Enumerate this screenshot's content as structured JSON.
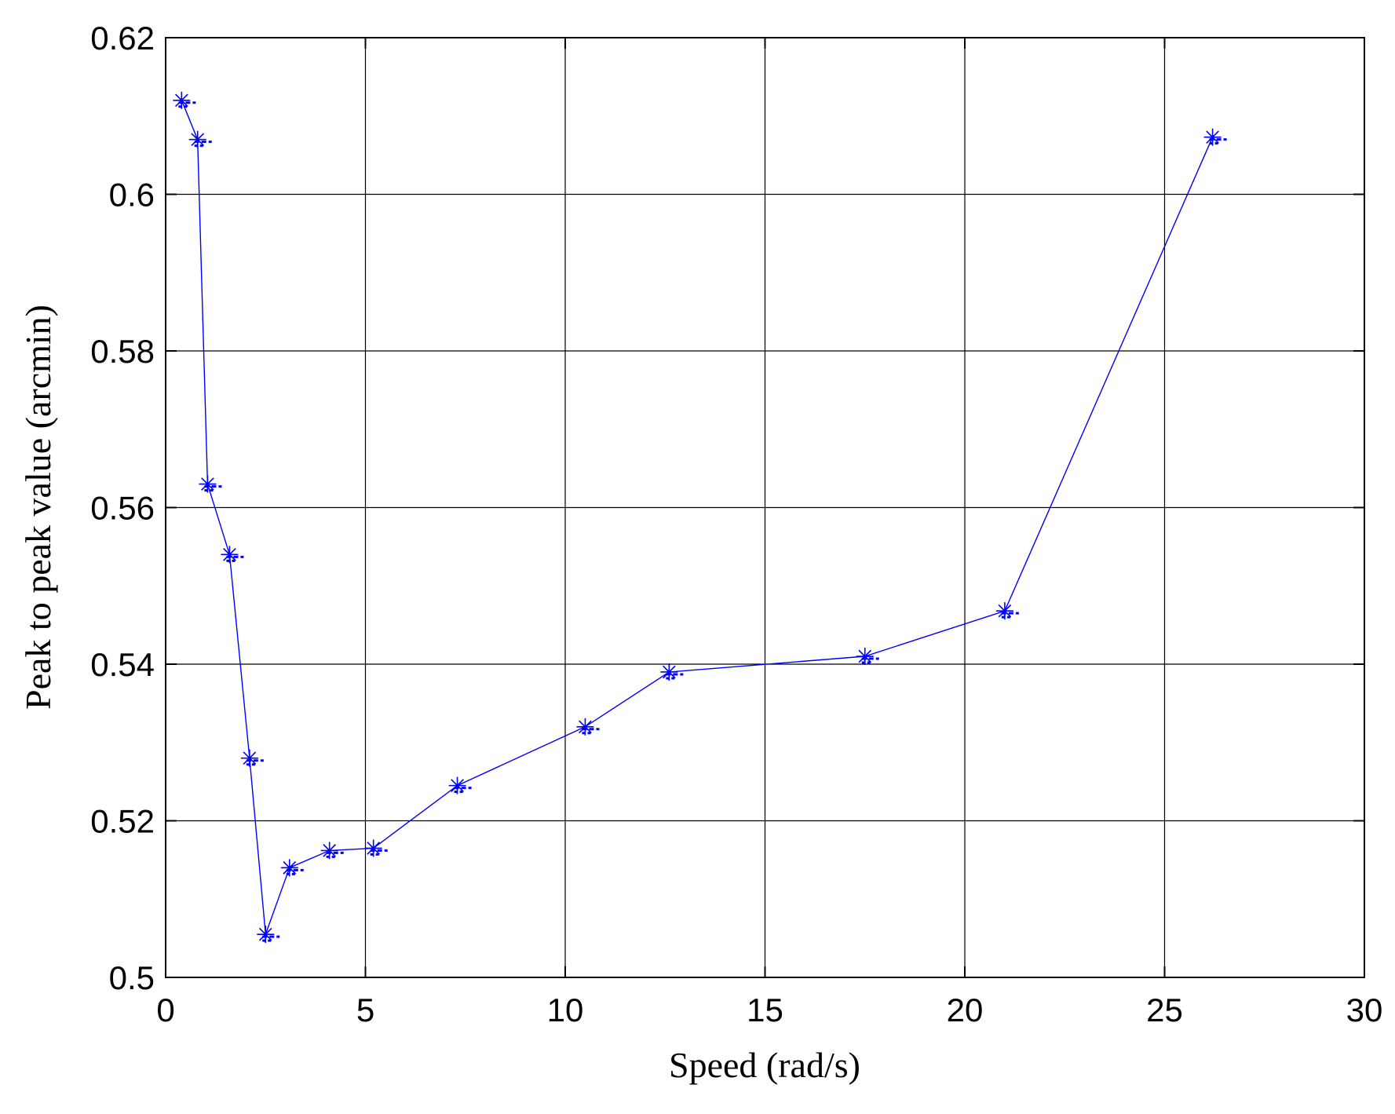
{
  "chart_data": {
    "type": "line",
    "title": "",
    "xlabel": "Speed (rad/s)",
    "ylabel": "Peak to peak value (arcmin)",
    "xlim": [
      0,
      30
    ],
    "ylim": [
      0.5,
      0.62
    ],
    "xticks": [
      0,
      5,
      10,
      15,
      20,
      25,
      30
    ],
    "xtick_labels": [
      "0",
      "5",
      "10",
      "15",
      "20",
      "25",
      "30"
    ],
    "yticks": [
      0.5,
      0.52,
      0.54,
      0.56,
      0.58,
      0.6,
      0.62
    ],
    "ytick_labels": [
      "0.5",
      "0.52",
      "0.54",
      "0.56",
      "0.58",
      "0.6",
      "0.62"
    ],
    "grid": true,
    "series": [
      {
        "color": "#0000ff",
        "marker": "asterisk",
        "x": [
          0.4,
          0.8,
          1.05,
          1.6,
          2.1,
          2.5,
          3.1,
          4.1,
          5.2,
          7.3,
          10.5,
          12.6,
          17.5,
          21.0,
          26.2
        ],
        "y": [
          0.612,
          0.607,
          0.563,
          0.554,
          0.528,
          0.5055,
          0.514,
          0.5162,
          0.5165,
          0.5245,
          0.532,
          0.539,
          0.541,
          0.5468,
          0.6073
        ]
      }
    ]
  }
}
